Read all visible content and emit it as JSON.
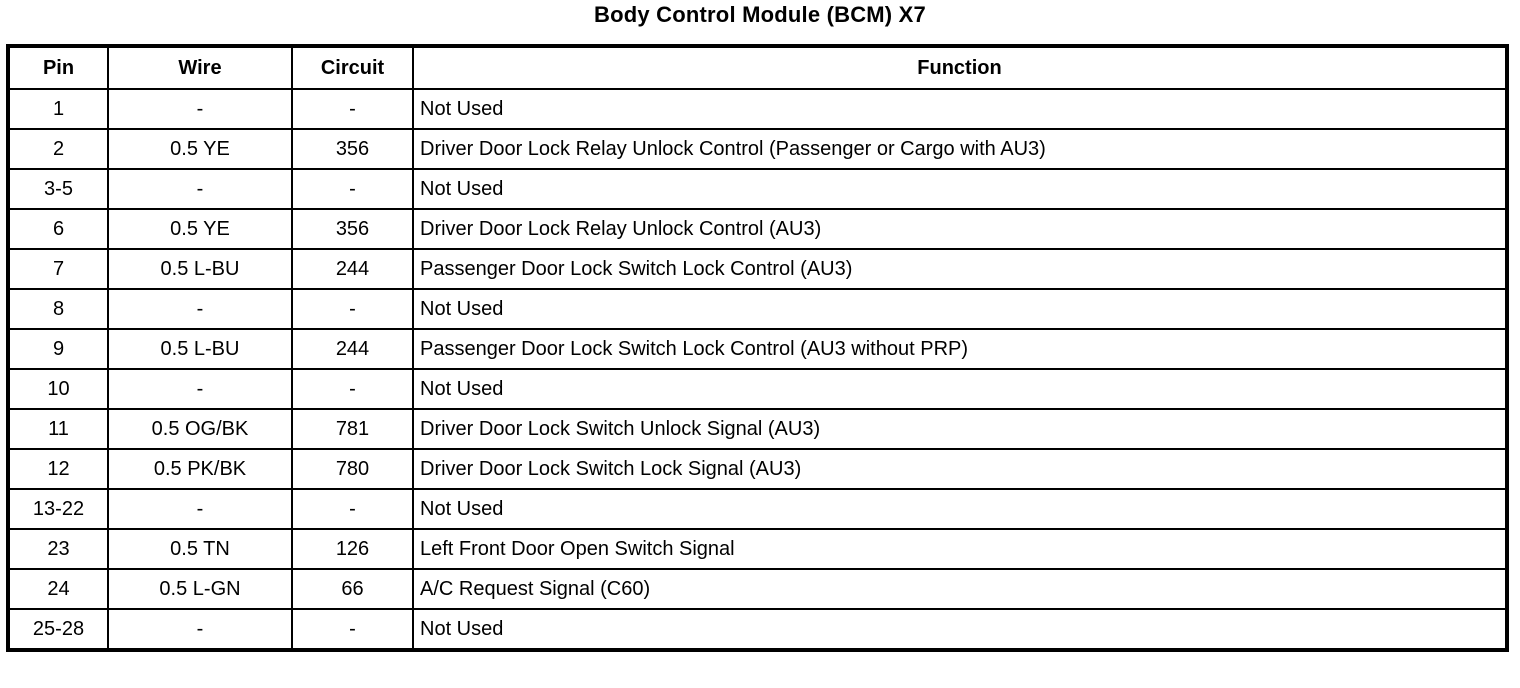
{
  "title": "Body Control Module (BCM) X7",
  "colors": {
    "border": "#000000",
    "background": "#ffffff",
    "text": "#000000"
  },
  "table": {
    "columns": [
      "Pin",
      "Wire",
      "Circuit",
      "Function"
    ],
    "rows": [
      {
        "pin": "1",
        "wire": "-",
        "circuit": "-",
        "function": "Not Used"
      },
      {
        "pin": "2",
        "wire": "0.5 YE",
        "circuit": "356",
        "function": "Driver Door Lock Relay Unlock Control (Passenger or Cargo with AU3)"
      },
      {
        "pin": "3-5",
        "wire": "-",
        "circuit": "-",
        "function": "Not Used"
      },
      {
        "pin": "6",
        "wire": "0.5 YE",
        "circuit": "356",
        "function": "Driver Door Lock Relay Unlock Control (AU3)"
      },
      {
        "pin": "7",
        "wire": "0.5 L-BU",
        "circuit": "244",
        "function": "Passenger Door Lock Switch Lock Control (AU3)"
      },
      {
        "pin": "8",
        "wire": "-",
        "circuit": "-",
        "function": "Not Used"
      },
      {
        "pin": "9",
        "wire": "0.5 L-BU",
        "circuit": "244",
        "function": "Passenger Door Lock Switch Lock Control (AU3 without PRP)"
      },
      {
        "pin": "10",
        "wire": "-",
        "circuit": "-",
        "function": "Not Used"
      },
      {
        "pin": "11",
        "wire": "0.5 OG/BK",
        "circuit": "781",
        "function": "Driver Door Lock Switch Unlock Signal (AU3)"
      },
      {
        "pin": "12",
        "wire": "0.5 PK/BK",
        "circuit": "780",
        "function": "Driver Door Lock Switch Lock Signal (AU3)"
      },
      {
        "pin": "13-22",
        "wire": "-",
        "circuit": "-",
        "function": "Not Used"
      },
      {
        "pin": "23",
        "wire": "0.5 TN",
        "circuit": "126",
        "function": "Left Front Door Open Switch Signal"
      },
      {
        "pin": "24",
        "wire": "0.5 L-GN",
        "circuit": "66",
        "function": "A/C Request Signal (C60)"
      },
      {
        "pin": "25-28",
        "wire": "-",
        "circuit": "-",
        "function": "Not Used"
      }
    ]
  }
}
